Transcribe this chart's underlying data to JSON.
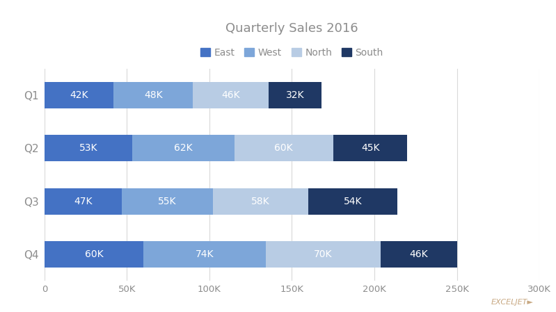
{
  "title": "Quarterly Sales 2016",
  "title_color": "#8c8c8c",
  "categories": [
    "Q1",
    "Q2",
    "Q3",
    "Q4"
  ],
  "series": {
    "East": [
      42000,
      53000,
      47000,
      60000
    ],
    "West": [
      48000,
      62000,
      55000,
      74000
    ],
    "North": [
      46000,
      60000,
      58000,
      70000
    ],
    "South": [
      32000,
      45000,
      54000,
      46000
    ]
  },
  "colors": {
    "East": "#4472c4",
    "West": "#7da6d9",
    "North": "#b8cce4",
    "South": "#1f3864"
  },
  "legend_order": [
    "East",
    "West",
    "North",
    "South"
  ],
  "legend_text_color": "#8c8c8c",
  "bar_height": 0.5,
  "xlim": [
    0,
    300000
  ],
  "xticks": [
    0,
    50000,
    100000,
    150000,
    200000,
    250000,
    300000
  ],
  "xticklabels": [
    "0",
    "50K",
    "100K",
    "150K",
    "200K",
    "250K",
    "300K"
  ],
  "background_color": "#ffffff",
  "grid_color": "#d9d9d9",
  "label_fontsize": 10,
  "tick_label_color": "#8c8c8c",
  "watermark": "EXCELJET►",
  "watermark_color": "#c8a882"
}
